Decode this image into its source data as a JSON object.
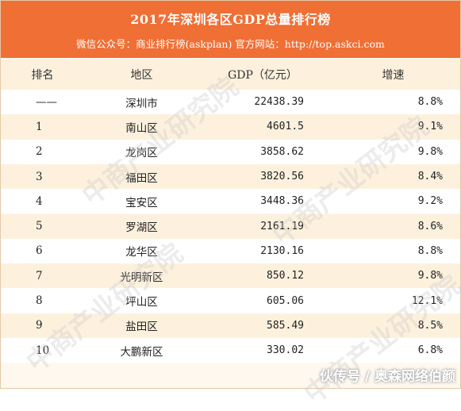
{
  "header": {
    "title": "2017年深圳各区GDP总量排行榜",
    "subtitle": "微信公众号：商业排行榜(askplan)   官方网站：http://top.askci.com"
  },
  "columns": [
    "排名",
    "地区",
    "GDP（亿元）",
    "增速"
  ],
  "rows": [
    {
      "rank": "——",
      "region": "深圳市",
      "gdp": "22438.39",
      "growth": "8.8%"
    },
    {
      "rank": "1",
      "region": "南山区",
      "gdp": "4601.5",
      "growth": "9.1%"
    },
    {
      "rank": "2",
      "region": "龙岗区",
      "gdp": "3858.62",
      "growth": "9.8%"
    },
    {
      "rank": "3",
      "region": "福田区",
      "gdp": "3820.56",
      "growth": "8.4%"
    },
    {
      "rank": "4",
      "region": "宝安区",
      "gdp": "3448.36",
      "growth": "9.2%"
    },
    {
      "rank": "5",
      "region": "罗湖区",
      "gdp": "2161.19",
      "growth": "8.6%"
    },
    {
      "rank": "6",
      "region": "龙华区",
      "gdp": "2130.16",
      "growth": "8.8%"
    },
    {
      "rank": "7",
      "region": "光明新区",
      "gdp": "850.12",
      "growth": "9.8%"
    },
    {
      "rank": "8",
      "region": "坪山区",
      "gdp": "605.06",
      "growth": "12.1%"
    },
    {
      "rank": "9",
      "region": "盐田区",
      "gdp": "585.49",
      "growth": "8.5%"
    },
    {
      "rank": "10",
      "region": "大鹏新区",
      "gdp": "330.02",
      "growth": "6.8%"
    }
  ],
  "watermark": "中商产业研究院",
  "footer_watermark": "伙传号 / 奥森网络伯颜",
  "colors": {
    "title_bar": "#f06f35",
    "row_alt": "#fdf1de",
    "row_plain": "#ffffff"
  }
}
